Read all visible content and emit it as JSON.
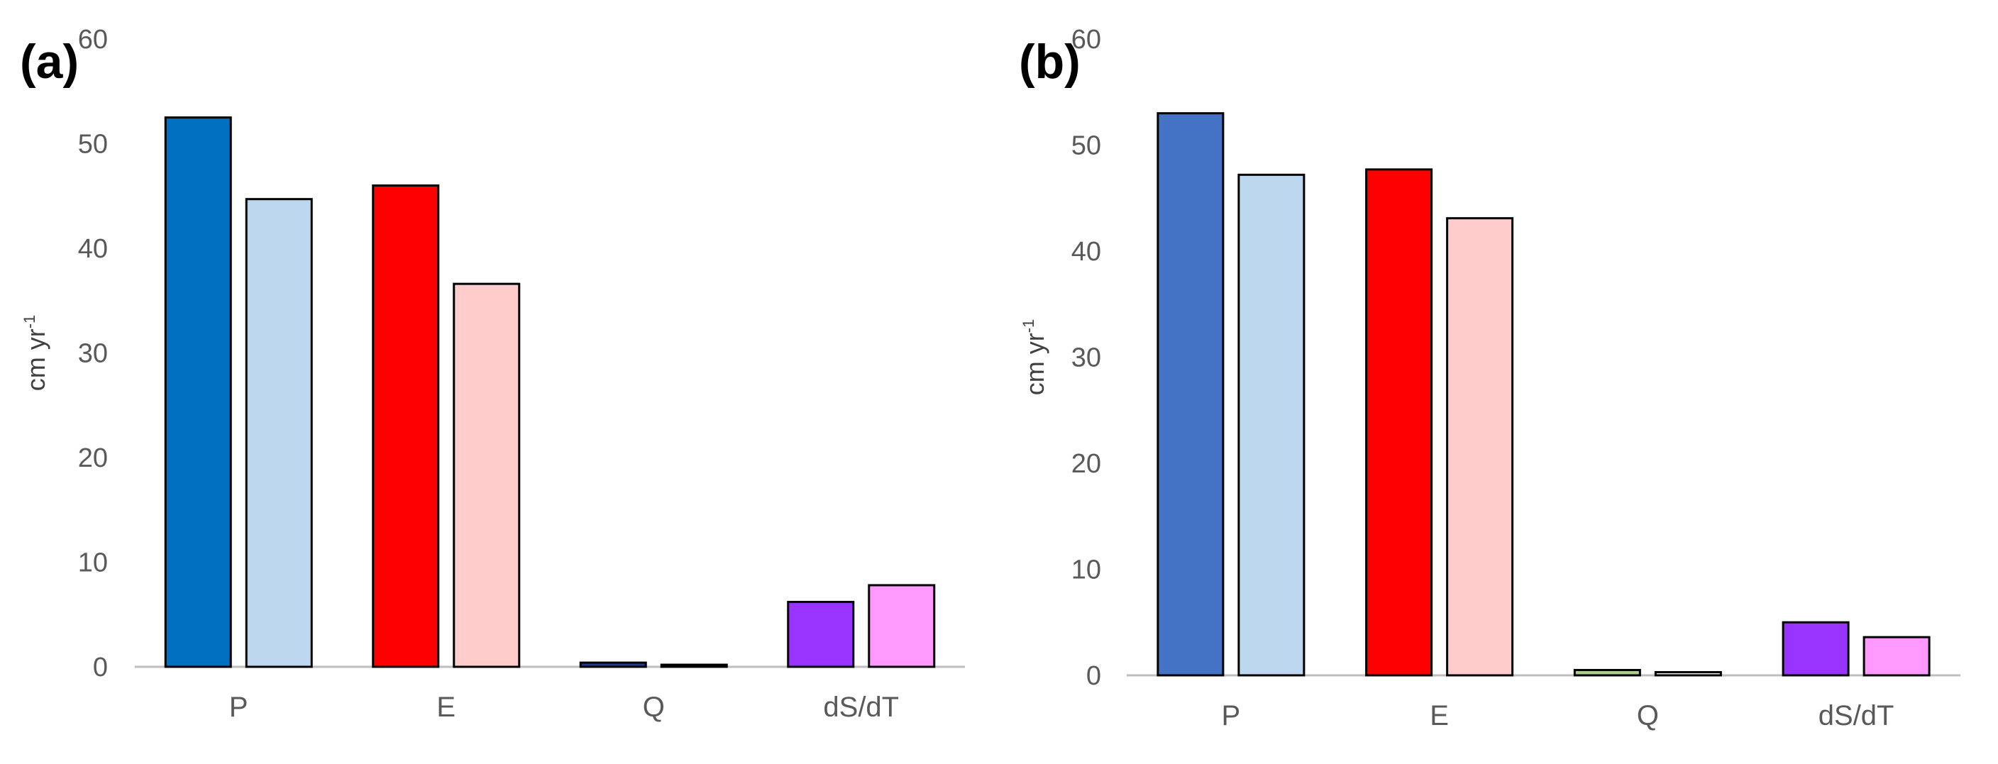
{
  "chart_data": [
    {
      "type": "bar",
      "panel_label": "(a)",
      "ylabel": "cm yr",
      "ylabel_superscript": "-1",
      "ylim": [
        0,
        60
      ],
      "yticks": [
        0,
        10,
        20,
        30,
        40,
        50,
        60
      ],
      "grid": false,
      "categories": [
        "P",
        "E",
        "Q",
        "dS/dT"
      ],
      "bars": [
        {
          "values": [
            52.5,
            46.0,
            0.4,
            6.2
          ],
          "colors": [
            "#0070C0",
            "#FF0000",
            "#1F3C88",
            "#9933FF"
          ]
        },
        {
          "values": [
            44.7,
            36.6,
            0.2,
            7.8
          ],
          "colors": [
            "#BDD7EE",
            "#FFCCCC",
            "#D9D9D9",
            "#FF99FF"
          ]
        }
      ]
    },
    {
      "type": "bar",
      "panel_label": "(b)",
      "ylabel": "cm yr",
      "ylabel_superscript": "-1",
      "ylim": [
        0,
        60
      ],
      "yticks": [
        0,
        10,
        20,
        30,
        40,
        50,
        60
      ],
      "grid": false,
      "categories": [
        "P",
        "E",
        "Q",
        "dS/dT"
      ],
      "bars": [
        {
          "values": [
            53.0,
            47.7,
            0.5,
            5.0
          ],
          "colors": [
            "#4472C4",
            "#FF0000",
            "#A9D18E",
            "#9933FF"
          ]
        },
        {
          "values": [
            47.2,
            43.1,
            0.3,
            3.6
          ],
          "colors": [
            "#BDD7EE",
            "#FFCCCC",
            "#E2F0D9",
            "#FF99FF"
          ]
        }
      ]
    }
  ]
}
